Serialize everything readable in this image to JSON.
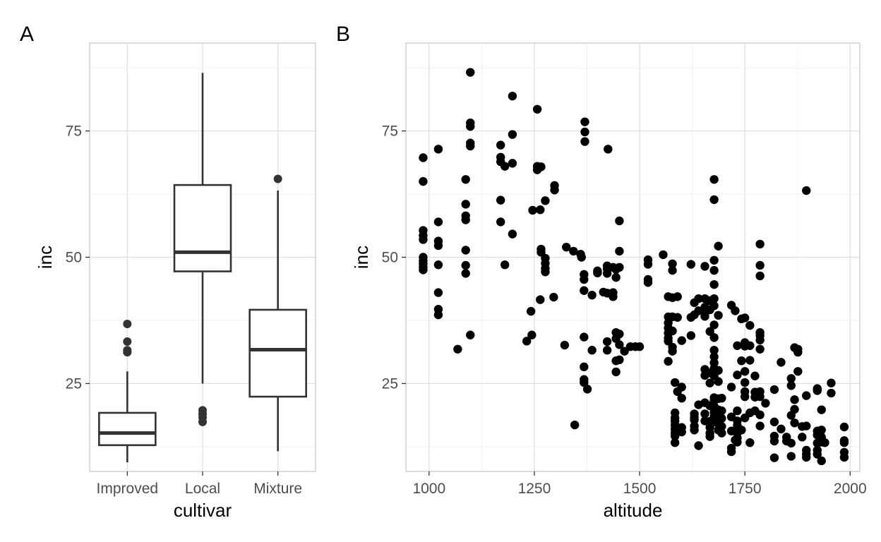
{
  "colors": {
    "box": "#333333",
    "points": "#000000",
    "grid": "#dedede"
  },
  "chart_data": [
    {
      "panel_label": "A",
      "type": "box",
      "xlabel": "cultivar",
      "ylabel": "inc",
      "categories": [
        "Improved",
        "Local",
        "Mixture"
      ],
      "ylim": [
        7.6,
        92.4
      ],
      "yticks": [
        25,
        50,
        75
      ],
      "yticklabels": [
        "25",
        "50",
        "75"
      ],
      "grid": true,
      "boxes": [
        {
          "category": "Improved",
          "min": 9.4,
          "q1": 12.8,
          "median": 15.2,
          "q3": 19.2,
          "max": 27.4,
          "outliers": [
            31.2,
            31.6,
            33.3,
            36.8
          ]
        },
        {
          "category": "Local",
          "min": 25.0,
          "q1": 47.2,
          "median": 51.0,
          "q3": 64.3,
          "max": 86.5,
          "outliers": [
            17.4,
            18.3,
            19.0,
            19.7
          ]
        },
        {
          "category": "Mixture",
          "min": 11.6,
          "q1": 22.4,
          "median": 31.7,
          "q3": 39.6,
          "max": 63.2,
          "outliers": [
            65.5
          ]
        }
      ]
    },
    {
      "panel_label": "B",
      "type": "scatter",
      "xlabel": "altitude",
      "ylabel": "inc",
      "xlim": [
        945,
        2023
      ],
      "ylim": [
        7.6,
        92.4
      ],
      "xticks": [
        1000,
        1250,
        1500,
        1750,
        2000
      ],
      "xticklabels": [
        "1000",
        "1250",
        "1500",
        "1750",
        "2000"
      ],
      "yticks": [
        25,
        50,
        75
      ],
      "yticklabels": [
        "25",
        "50",
        "75"
      ],
      "grid": true,
      "points": [
        [
          986,
          69.7
        ],
        [
          986,
          65.0
        ],
        [
          986,
          55.3
        ],
        [
          986,
          54.3
        ],
        [
          986,
          53.5
        ],
        [
          986,
          50.0
        ],
        [
          986,
          49.3
        ],
        [
          986,
          48.7
        ],
        [
          986,
          48.0
        ],
        [
          986,
          47.5
        ],
        [
          1022,
          71.4
        ],
        [
          1022,
          57.0
        ],
        [
          1022,
          53.2
        ],
        [
          1022,
          52.3
        ],
        [
          1022,
          48.5
        ],
        [
          1022,
          43.0
        ],
        [
          1022,
          39.7
        ],
        [
          1022,
          38.6
        ],
        [
          1068,
          31.8
        ],
        [
          1087,
          65.4
        ],
        [
          1087,
          60.5
        ],
        [
          1087,
          58.2
        ],
        [
          1087,
          57.4
        ],
        [
          1087,
          51.4
        ],
        [
          1087,
          48.4
        ],
        [
          1087,
          46.8
        ],
        [
          1098,
          86.6
        ],
        [
          1098,
          76.6
        ],
        [
          1098,
          75.9
        ],
        [
          1098,
          72.6
        ],
        [
          1098,
          72.0
        ],
        [
          1098,
          34.6
        ],
        [
          1170,
          72.2
        ],
        [
          1170,
          69.8
        ],
        [
          1170,
          68.9
        ],
        [
          1170,
          61.3
        ],
        [
          1170,
          57.0
        ],
        [
          1180,
          68.0
        ],
        [
          1180,
          48.5
        ],
        [
          1198,
          81.9
        ],
        [
          1198,
          74.3
        ],
        [
          1198,
          68.6
        ],
        [
          1198,
          54.6
        ],
        [
          1246,
          59.3
        ],
        [
          1242,
          39.3
        ],
        [
          1232,
          33.4
        ],
        [
          1244,
          34.6
        ],
        [
          1257,
          79.3
        ],
        [
          1257,
          68.0
        ],
        [
          1257,
          67.3
        ],
        [
          1266,
          67.9
        ],
        [
          1264,
          59.4
        ],
        [
          1266,
          51.6
        ],
        [
          1266,
          51.0
        ],
        [
          1264,
          41.6
        ],
        [
          1276,
          61.2
        ],
        [
          1276,
          49.8
        ],
        [
          1276,
          48.8
        ],
        [
          1276,
          47.8
        ],
        [
          1276,
          47.1
        ],
        [
          1298,
          64.2
        ],
        [
          1298,
          63.3
        ],
        [
          1296,
          42.1
        ],
        [
          1322,
          32.6
        ],
        [
          1326,
          52.0
        ],
        [
          1343,
          51.2
        ],
        [
          1346,
          16.8
        ],
        [
          1360,
          50.6
        ],
        [
          1362,
          50.0
        ],
        [
          1370,
          76.8
        ],
        [
          1370,
          74.8
        ],
        [
          1370,
          72.9
        ],
        [
          1368,
          46.6
        ],
        [
          1368,
          45.6
        ],
        [
          1368,
          43.4
        ],
        [
          1368,
          34.2
        ],
        [
          1368,
          28.3
        ],
        [
          1368,
          25.8
        ],
        [
          1368,
          25.2
        ],
        [
          1376,
          23.9
        ],
        [
          1387,
          42.5
        ],
        [
          1387,
          31.6
        ],
        [
          1400,
          47.3
        ],
        [
          1400,
          46.9
        ],
        [
          1414,
          43.1
        ],
        [
          1425,
          71.4
        ],
        [
          1423,
          48.3
        ],
        [
          1423,
          47.7
        ],
        [
          1423,
          46.8
        ],
        [
          1423,
          42.9
        ],
        [
          1423,
          33.3
        ],
        [
          1423,
          31.6
        ],
        [
          1437,
          48.0
        ],
        [
          1437,
          43.0
        ],
        [
          1437,
          42.2
        ],
        [
          1444,
          47.6
        ],
        [
          1444,
          46.0
        ],
        [
          1444,
          35.1
        ],
        [
          1444,
          33.9
        ],
        [
          1444,
          29.5
        ],
        [
          1444,
          27.3
        ],
        [
          1452,
          57.2
        ],
        [
          1452,
          51.2
        ],
        [
          1452,
          48.0
        ],
        [
          1452,
          34.8
        ],
        [
          1452,
          32.7
        ],
        [
          1452,
          29.7
        ],
        [
          1464,
          31.4
        ],
        [
          1478,
          32.3
        ],
        [
          1490,
          32.3
        ],
        [
          1500,
          32.3
        ],
        [
          1520,
          49.5
        ],
        [
          1520,
          48.6
        ],
        [
          1520,
          45.6
        ],
        [
          1520,
          45.0
        ],
        [
          1556,
          50.5
        ],
        [
          1568,
          42.2
        ],
        [
          1568,
          38.2
        ],
        [
          1568,
          37.0
        ],
        [
          1568,
          36.0
        ],
        [
          1568,
          35.0
        ],
        [
          1568,
          34.0
        ],
        [
          1568,
          33.4
        ],
        [
          1568,
          29.4
        ],
        [
          1578,
          48.7
        ],
        [
          1578,
          47.4
        ],
        [
          1578,
          42.0
        ],
        [
          1578,
          38.2
        ],
        [
          1578,
          35.4
        ],
        [
          1578,
          32.2
        ],
        [
          1578,
          31.4
        ],
        [
          1584,
          25.2
        ],
        [
          1584,
          19.2
        ],
        [
          1584,
          18.2
        ],
        [
          1584,
          17.6
        ],
        [
          1584,
          16.8
        ],
        [
          1584,
          16.0
        ],
        [
          1584,
          15.2
        ],
        [
          1584,
          14.6
        ],
        [
          1584,
          13.3
        ],
        [
          1590,
          42.2
        ],
        [
          1590,
          38.1
        ],
        [
          1590,
          23.4
        ],
        [
          1600,
          33.5
        ],
        [
          1600,
          24.3
        ],
        [
          1600,
          22.1
        ],
        [
          1600,
          16.3
        ],
        [
          1600,
          15.4
        ],
        [
          1622,
          48.6
        ],
        [
          1622,
          38.1
        ],
        [
          1622,
          34.5
        ],
        [
          1630,
          41.0
        ],
        [
          1630,
          38.6
        ],
        [
          1630,
          19.0
        ],
        [
          1630,
          18.3
        ],
        [
          1630,
          17.8
        ],
        [
          1630,
          16.6
        ],
        [
          1630,
          15.8
        ],
        [
          1640,
          41.8
        ],
        [
          1640,
          39.4
        ],
        [
          1640,
          20.8
        ],
        [
          1640,
          12.7
        ],
        [
          1655,
          48.2
        ],
        [
          1655,
          41.8
        ],
        [
          1655,
          40.1
        ],
        [
          1655,
          39.0
        ],
        [
          1655,
          38.3
        ],
        [
          1655,
          27.8
        ],
        [
          1655,
          26.6
        ],
        [
          1655,
          21.2
        ],
        [
          1655,
          19.0
        ],
        [
          1655,
          17.6
        ],
        [
          1667,
          41.4
        ],
        [
          1667,
          39.6
        ],
        [
          1667,
          35.3
        ],
        [
          1667,
          27.1
        ],
        [
          1667,
          25.1
        ],
        [
          1667,
          20.6
        ],
        [
          1667,
          17.5
        ],
        [
          1667,
          16.3
        ],
        [
          1667,
          15.2
        ],
        [
          1667,
          14.5
        ],
        [
          1677,
          65.4
        ],
        [
          1677,
          61.4
        ],
        [
          1677,
          49.4
        ],
        [
          1677,
          47.4
        ],
        [
          1677,
          44.6
        ],
        [
          1677,
          41.8
        ],
        [
          1677,
          40.4
        ],
        [
          1677,
          36.6
        ],
        [
          1677,
          34.1
        ],
        [
          1677,
          31.6
        ],
        [
          1677,
          30.3
        ],
        [
          1677,
          29.1
        ],
        [
          1677,
          28.0
        ],
        [
          1677,
          26.5
        ],
        [
          1677,
          22.2
        ],
        [
          1677,
          21.6
        ],
        [
          1677,
          20.5
        ],
        [
          1677,
          19.3
        ],
        [
          1677,
          18.5
        ],
        [
          1677,
          17.4
        ],
        [
          1687,
          52.2
        ],
        [
          1687,
          38.5
        ],
        [
          1687,
          27.6
        ],
        [
          1687,
          25.4
        ],
        [
          1687,
          22.0
        ],
        [
          1687,
          19.8
        ],
        [
          1687,
          18.3
        ],
        [
          1687,
          17.0
        ],
        [
          1687,
          15.8
        ],
        [
          1695,
          22.1
        ],
        [
          1695,
          19.6
        ],
        [
          1695,
          18.1
        ],
        [
          1695,
          16.5
        ],
        [
          1695,
          15.2
        ],
        [
          1718,
          40.5
        ],
        [
          1718,
          24.3
        ],
        [
          1718,
          18.4
        ],
        [
          1718,
          15.6
        ],
        [
          1718,
          12.2
        ],
        [
          1718,
          11.5
        ],
        [
          1727,
          39.4
        ],
        [
          1727,
          13.8
        ],
        [
          1732,
          32.5
        ],
        [
          1732,
          26.7
        ],
        [
          1732,
          19.6
        ],
        [
          1732,
          17.6
        ],
        [
          1732,
          16.7
        ],
        [
          1732,
          15.2
        ],
        [
          1732,
          14.2
        ],
        [
          1732,
          13.4
        ],
        [
          1742,
          37.8
        ],
        [
          1742,
          29.5
        ],
        [
          1742,
          15.8
        ],
        [
          1750,
          38.0
        ],
        [
          1750,
          33.1
        ],
        [
          1750,
          32.4
        ],
        [
          1750,
          27.4
        ],
        [
          1750,
          25.2
        ],
        [
          1750,
          23.4
        ],
        [
          1750,
          22.4
        ],
        [
          1750,
          18.2
        ],
        [
          1762,
          36.5
        ],
        [
          1762,
          32.5
        ],
        [
          1762,
          29.6
        ],
        [
          1762,
          19.2
        ],
        [
          1762,
          13.3
        ],
        [
          1774,
          26.5
        ],
        [
          1774,
          23.3
        ],
        [
          1774,
          22.3
        ],
        [
          1774,
          19.6
        ],
        [
          1786,
          52.6
        ],
        [
          1786,
          48.4
        ],
        [
          1786,
          46.3
        ],
        [
          1786,
          35.1
        ],
        [
          1786,
          34.5
        ],
        [
          1786,
          33.6
        ],
        [
          1786,
          31.8
        ],
        [
          1786,
          23.4
        ],
        [
          1786,
          22.4
        ],
        [
          1786,
          18.8
        ],
        [
          1786,
          16.6
        ],
        [
          1799,
          21.1
        ],
        [
          1820,
          23.8
        ],
        [
          1820,
          17.4
        ],
        [
          1820,
          14.6
        ],
        [
          1820,
          13.6
        ],
        [
          1820,
          10.3
        ],
        [
          1836,
          29.2
        ],
        [
          1836,
          16.0
        ],
        [
          1849,
          14.4
        ],
        [
          1849,
          13.6
        ],
        [
          1860,
          26.0
        ],
        [
          1860,
          24.6
        ],
        [
          1860,
          18.7
        ],
        [
          1860,
          13.2
        ],
        [
          1860,
          10.6
        ],
        [
          1868,
          32.1
        ],
        [
          1868,
          21.8
        ],
        [
          1868,
          19.9
        ],
        [
          1868,
          17.2
        ],
        [
          1876,
          31.8
        ],
        [
          1876,
          31.2
        ],
        [
          1876,
          27.4
        ],
        [
          1886,
          16.5
        ],
        [
          1886,
          14.4
        ],
        [
          1896,
          63.2
        ],
        [
          1896,
          22.6
        ],
        [
          1896,
          16.6
        ],
        [
          1896,
          11.8
        ],
        [
          1896,
          11.0
        ],
        [
          1896,
          10.4
        ],
        [
          1922,
          24.0
        ],
        [
          1922,
          23.6
        ],
        [
          1922,
          15.6
        ],
        [
          1922,
          14.8
        ],
        [
          1922,
          13.2
        ],
        [
          1922,
          11.8
        ],
        [
          1922,
          11.0
        ],
        [
          1932,
          19.8
        ],
        [
          1932,
          15.8
        ],
        [
          1932,
          14.4
        ],
        [
          1932,
          13.4
        ],
        [
          1932,
          9.7
        ],
        [
          1940,
          13.3
        ],
        [
          1955,
          25.1
        ],
        [
          1955,
          23.1
        ],
        [
          1986,
          16.4
        ],
        [
          1986,
          13.7
        ],
        [
          1986,
          13.3
        ],
        [
          1986,
          11.4
        ],
        [
          1986,
          10.4
        ]
      ]
    }
  ]
}
